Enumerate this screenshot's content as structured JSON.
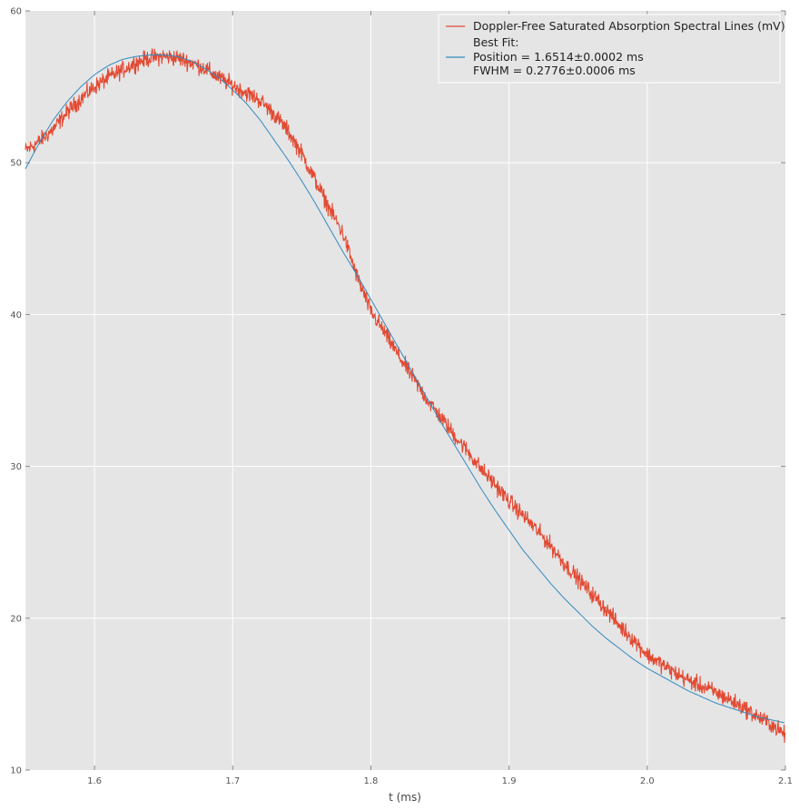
{
  "chart_data": {
    "type": "line",
    "xlabel": "t (ms)",
    "ylabel": "",
    "xlim": [
      1.55,
      2.1
    ],
    "ylim": [
      10,
      60
    ],
    "x_ticks": [
      1.6,
      1.7,
      1.8,
      1.9,
      2.0,
      2.1
    ],
    "x_tick_labels": [
      "1.6",
      "1.7",
      "1.8",
      "1.9",
      "2.0",
      "2.1"
    ],
    "y_ticks": [
      10,
      20,
      30,
      40,
      50,
      60
    ],
    "y_tick_labels": [
      "10",
      "20",
      "30",
      "40",
      "50",
      "60"
    ],
    "grid": true,
    "legend_position": "top-right",
    "colors": {
      "data": "#e24a33",
      "fit": "#348abd",
      "background": "#e5e5e5",
      "grid": "#ffffff"
    },
    "series": [
      {
        "name": "Doppler-Free Saturated Absorption Spectral Lines (mV)",
        "style": "noisy-line",
        "x": [
          1.55,
          1.56,
          1.57,
          1.58,
          1.59,
          1.6,
          1.61,
          1.62,
          1.63,
          1.64,
          1.65,
          1.66,
          1.67,
          1.68,
          1.69,
          1.7,
          1.71,
          1.72,
          1.73,
          1.74,
          1.75,
          1.76,
          1.77,
          1.78,
          1.79,
          1.8,
          1.81,
          1.82,
          1.83,
          1.84,
          1.85,
          1.86,
          1.87,
          1.88,
          1.89,
          1.9,
          1.91,
          1.92,
          1.93,
          1.94,
          1.95,
          1.96,
          1.97,
          1.98,
          1.99,
          2.0,
          2.01,
          2.02,
          2.03,
          2.04,
          2.05,
          2.06,
          2.07,
          2.08,
          2.09,
          2.1
        ],
        "y": [
          50.8,
          51.4,
          52.2,
          53.3,
          54.2,
          55.0,
          55.6,
          56.1,
          56.6,
          56.9,
          57.0,
          56.9,
          56.6,
          56.2,
          55.6,
          55.1,
          54.6,
          54.1,
          53.2,
          52.1,
          50.6,
          48.8,
          47.0,
          45.3,
          42.5,
          40.2,
          38.8,
          37.3,
          35.9,
          34.5,
          33.3,
          32.1,
          31.0,
          29.8,
          28.8,
          27.7,
          26.8,
          25.8,
          24.8,
          23.6,
          22.6,
          21.6,
          20.6,
          19.5,
          18.6,
          17.6,
          17.0,
          16.4,
          15.9,
          15.5,
          15.1,
          14.6,
          14.1,
          13.5,
          13.0,
          12.3
        ]
      },
      {
        "name": "Best Fit:",
        "style": "smooth-line",
        "x": [
          1.55,
          1.56,
          1.57,
          1.58,
          1.59,
          1.6,
          1.61,
          1.62,
          1.63,
          1.64,
          1.65,
          1.66,
          1.67,
          1.68,
          1.69,
          1.7,
          1.71,
          1.72,
          1.73,
          1.74,
          1.75,
          1.76,
          1.77,
          1.78,
          1.79,
          1.8,
          1.81,
          1.82,
          1.83,
          1.84,
          1.85,
          1.86,
          1.87,
          1.88,
          1.89,
          1.9,
          1.91,
          1.92,
          1.93,
          1.94,
          1.95,
          1.96,
          1.97,
          1.98,
          1.99,
          2.0,
          2.01,
          2.02,
          2.03,
          2.04,
          2.05,
          2.06,
          2.07,
          2.08,
          2.09,
          2.1
        ],
        "y": [
          49.6,
          51.3,
          52.8,
          54.0,
          55.0,
          55.8,
          56.4,
          56.8,
          57.0,
          57.1,
          57.1,
          57.0,
          56.7,
          56.2,
          55.6,
          54.8,
          53.9,
          52.8,
          51.5,
          50.2,
          48.8,
          47.3,
          45.7,
          44.1,
          42.6,
          41.0,
          39.4,
          37.8,
          36.2,
          34.6,
          33.0,
          31.5,
          30.0,
          28.5,
          27.1,
          25.8,
          24.5,
          23.4,
          22.3,
          21.3,
          20.4,
          19.5,
          18.7,
          18.0,
          17.3,
          16.7,
          16.2,
          15.7,
          15.2,
          14.8,
          14.4,
          14.1,
          13.8,
          13.5,
          13.3,
          13.1
        ]
      }
    ],
    "legend": {
      "entries": [
        {
          "lines": [
            "Doppler-Free Saturated Absorption Spectral Lines (mV)"
          ]
        },
        {
          "lines": [
            "Best Fit:",
            "Position = 1.6514±0.0002 ms",
            "FWHM = 0.2776±0.0006 ms"
          ]
        }
      ]
    }
  }
}
